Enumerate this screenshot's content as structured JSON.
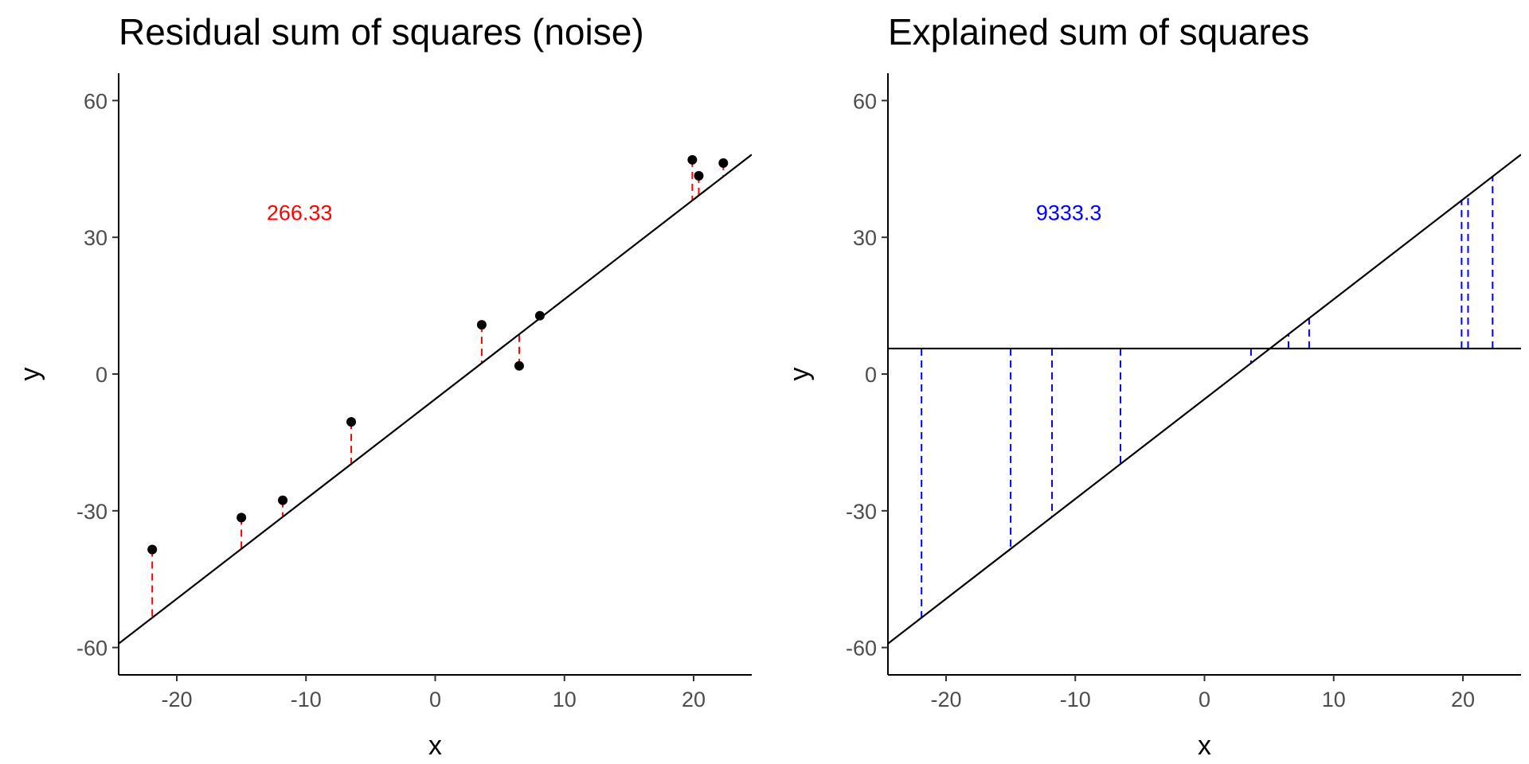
{
  "chart_data": [
    {
      "type": "scatter",
      "title": "Residual sum of squares (noise)",
      "xlabel": "x",
      "ylabel": "y",
      "xlim": [
        -24.5,
        24.5
      ],
      "ylim": [
        -66,
        66
      ],
      "xticks": [
        -20,
        -10,
        0,
        10,
        20
      ],
      "yticks": [
        -60,
        -30,
        0,
        30,
        60
      ],
      "xtick_labels": [
        "-20",
        "-10",
        "0",
        "10",
        "20"
      ],
      "ytick_labels": [
        "-60",
        "-30",
        "0",
        "30",
        "60"
      ],
      "grid": false,
      "points": [
        {
          "x": -21.9,
          "y": -38.5
        },
        {
          "x": -15.0,
          "y": -31.5
        },
        {
          "x": -11.8,
          "y": -27.7
        },
        {
          "x": -6.5,
          "y": -10.5
        },
        {
          "x": 3.6,
          "y": 10.8
        },
        {
          "x": 6.5,
          "y": 1.8
        },
        {
          "x": 8.1,
          "y": 12.8
        },
        {
          "x": 19.9,
          "y": 47.0
        },
        {
          "x": 20.4,
          "y": 43.5
        },
        {
          "x": 22.3,
          "y": 46.3
        }
      ],
      "fit_line": {
        "intercept": -5.5,
        "slope": 2.19
      },
      "segments_color": "#ff0000",
      "annotation": {
        "text": "266.33",
        "x": -10.5,
        "y": 35.5,
        "color": "#ff0000"
      }
    },
    {
      "type": "scatter",
      "title": "Explained sum of squares",
      "xlabel": "x",
      "ylabel": "y",
      "xlim": [
        -24.5,
        24.5
      ],
      "ylim": [
        -66,
        66
      ],
      "xticks": [
        -20,
        -10,
        0,
        10,
        20
      ],
      "yticks": [
        -60,
        -30,
        0,
        30,
        60
      ],
      "xtick_labels": [
        "-20",
        "-10",
        "0",
        "10",
        "20"
      ],
      "ytick_labels": [
        "-60",
        "-30",
        "0",
        "30",
        "60"
      ],
      "grid": false,
      "x_values": [
        -21.9,
        -15.0,
        -11.8,
        -6.5,
        3.6,
        6.5,
        8.1,
        19.9,
        20.4,
        22.3
      ],
      "fit_line": {
        "intercept": -5.5,
        "slope": 2.19
      },
      "mean_line": {
        "y": 5.6
      },
      "segments_color": "#0000ff",
      "annotation": {
        "text": "9333.3",
        "x": -10.5,
        "y": 35.5,
        "color": "#0000ff"
      }
    }
  ]
}
